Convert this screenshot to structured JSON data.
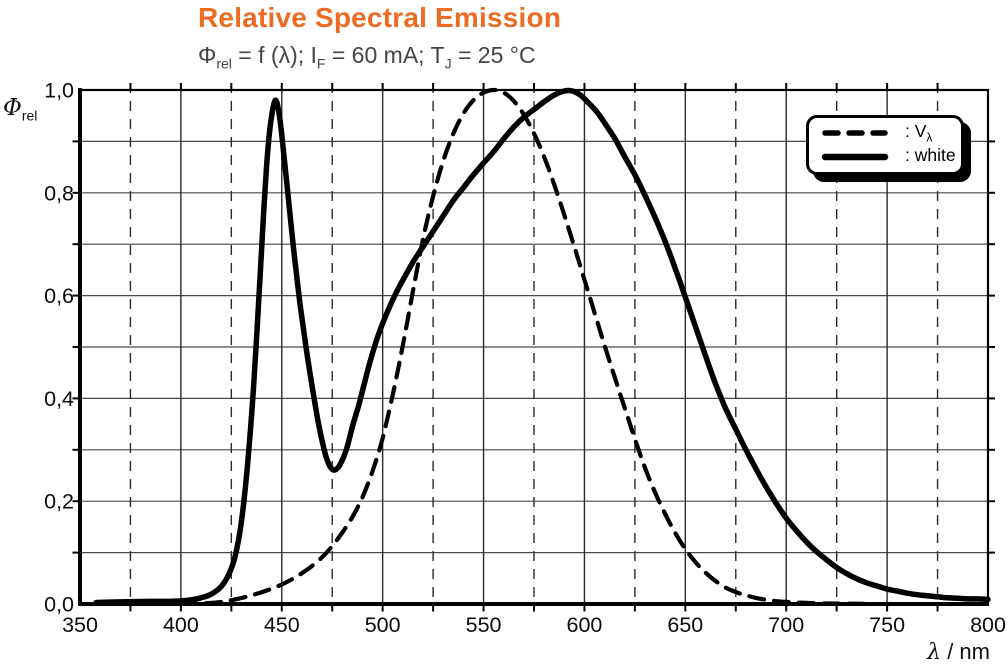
{
  "header": {
    "title": "Relative Spectral Emission",
    "subtitle": {
      "phi": "Φ",
      "phi_sub": "rel",
      "seg1": " = f (λ); I",
      "i_sub": "F",
      "seg2": " = 60 mA; T",
      "t_sub": "J",
      "seg3": " = 25 °C"
    }
  },
  "axes": {
    "y_label": {
      "symbol": "Φ",
      "sub": "rel"
    },
    "x_label": {
      "symbol": "λ",
      "rest": " / nm"
    }
  },
  "legend": {
    "entries": [
      {
        "style": "dashed",
        "label_pre": ": V",
        "label_sub": "λ"
      },
      {
        "style": "solid",
        "label_pre": ": white",
        "label_sub": ""
      }
    ]
  },
  "colors": {
    "title_orange": "#EE6B23",
    "subtitle_gray": "#454545",
    "axis_black": "#000000",
    "grid_dark": "#2a2a2a",
    "grid_gray": "#4a4a4a",
    "curve_black": "#000000"
  },
  "chart_data": {
    "type": "line",
    "title": "Relative Spectral Emission",
    "subtitle": "Φrel = f (λ); IF = 60 mA; TJ = 25 °C",
    "xlabel": "λ / nm",
    "ylabel": "Φrel",
    "xlim": [
      350,
      800
    ],
    "ylim": [
      0.0,
      1.0
    ],
    "x_major_tick_step": 50,
    "x_minor_tick_step": 25,
    "x_tick_labels": [
      "350",
      "400",
      "450",
      "500",
      "550",
      "600",
      "650",
      "700",
      "750",
      "800"
    ],
    "y_tick_labels": [
      {
        "value": 0.0,
        "label": "0,0"
      },
      {
        "value": 0.2,
        "label": "0,2"
      },
      {
        "value": 0.4,
        "label": "0,4"
      },
      {
        "value": 0.6,
        "label": "0,6"
      },
      {
        "value": 0.8,
        "label": "0,8"
      },
      {
        "value": 1.0,
        "label": "1,0"
      }
    ],
    "y_grid_step": 0.1,
    "grid": "vertical: solid every 50 nm, dashed every 25 nm; horizontal: solid every 0.1",
    "legend_position": "top-right",
    "series": [
      {
        "name": "V-lambda",
        "line": "dashed",
        "points": [
          [
            400,
            0.0004
          ],
          [
            410,
            0.0012
          ],
          [
            420,
            0.004
          ],
          [
            430,
            0.0116
          ],
          [
            435,
            0.0168
          ],
          [
            440,
            0.023
          ],
          [
            445,
            0.0298
          ],
          [
            450,
            0.038
          ],
          [
            455,
            0.048
          ],
          [
            460,
            0.06
          ],
          [
            465,
            0.0739
          ],
          [
            470,
            0.091
          ],
          [
            475,
            0.1126
          ],
          [
            480,
            0.139
          ],
          [
            485,
            0.1693
          ],
          [
            490,
            0.208
          ],
          [
            495,
            0.2586
          ],
          [
            500,
            0.323
          ],
          [
            505,
            0.4073
          ],
          [
            510,
            0.503
          ],
          [
            515,
            0.6082
          ],
          [
            520,
            0.71
          ],
          [
            525,
            0.7932
          ],
          [
            530,
            0.862
          ],
          [
            535,
            0.9149
          ],
          [
            540,
            0.954
          ],
          [
            545,
            0.9803
          ],
          [
            550,
            0.995
          ],
          [
            555,
            1.0
          ],
          [
            560,
            0.995
          ],
          [
            565,
            0.9786
          ],
          [
            570,
            0.952
          ],
          [
            575,
            0.9154
          ],
          [
            580,
            0.87
          ],
          [
            585,
            0.8163
          ],
          [
            590,
            0.757
          ],
          [
            595,
            0.6949
          ],
          [
            600,
            0.631
          ],
          [
            605,
            0.5668
          ],
          [
            610,
            0.503
          ],
          [
            615,
            0.4412
          ],
          [
            620,
            0.381
          ],
          [
            625,
            0.321
          ],
          [
            630,
            0.265
          ],
          [
            635,
            0.217
          ],
          [
            640,
            0.175
          ],
          [
            645,
            0.1382
          ],
          [
            650,
            0.107
          ],
          [
            655,
            0.0816
          ],
          [
            660,
            0.061
          ],
          [
            665,
            0.0446
          ],
          [
            670,
            0.032
          ],
          [
            675,
            0.0232
          ],
          [
            680,
            0.017
          ],
          [
            685,
            0.0119
          ],
          [
            690,
            0.0082
          ],
          [
            695,
            0.0057
          ],
          [
            700,
            0.0041
          ],
          [
            710,
            0.0021
          ],
          [
            720,
            0.001
          ],
          [
            730,
            0.0005
          ],
          [
            740,
            0.0003
          ]
        ]
      },
      {
        "name": "white",
        "line": "solid",
        "points": [
          [
            358,
            0.003
          ],
          [
            370,
            0.004
          ],
          [
            385,
            0.005
          ],
          [
            395,
            0.005
          ],
          [
            400,
            0.006
          ],
          [
            405,
            0.008
          ],
          [
            410,
            0.012
          ],
          [
            415,
            0.019
          ],
          [
            420,
            0.034
          ],
          [
            424,
            0.06
          ],
          [
            427,
            0.095
          ],
          [
            430,
            0.16
          ],
          [
            433,
            0.27
          ],
          [
            436,
            0.42
          ],
          [
            439,
            0.62
          ],
          [
            441,
            0.76
          ],
          [
            443,
            0.88
          ],
          [
            445,
            0.95
          ],
          [
            447,
            0.98
          ],
          [
            449,
            0.945
          ],
          [
            451,
            0.875
          ],
          [
            453,
            0.8
          ],
          [
            456,
            0.685
          ],
          [
            459,
            0.585
          ],
          [
            462,
            0.5
          ],
          [
            465,
            0.425
          ],
          [
            468,
            0.355
          ],
          [
            471,
            0.3
          ],
          [
            473,
            0.275
          ],
          [
            475,
            0.262
          ],
          [
            477,
            0.262
          ],
          [
            479,
            0.272
          ],
          [
            482,
            0.3
          ],
          [
            485,
            0.345
          ],
          [
            488,
            0.385
          ],
          [
            491,
            0.43
          ],
          [
            494,
            0.475
          ],
          [
            498,
            0.525
          ],
          [
            502,
            0.565
          ],
          [
            506,
            0.6
          ],
          [
            510,
            0.63
          ],
          [
            515,
            0.665
          ],
          [
            520,
            0.695
          ],
          [
            525,
            0.725
          ],
          [
            530,
            0.755
          ],
          [
            535,
            0.785
          ],
          [
            540,
            0.81
          ],
          [
            545,
            0.835
          ],
          [
            550,
            0.858
          ],
          [
            555,
            0.88
          ],
          [
            560,
            0.905
          ],
          [
            565,
            0.928
          ],
          [
            570,
            0.947
          ],
          [
            575,
            0.962
          ],
          [
            580,
            0.977
          ],
          [
            585,
            0.99
          ],
          [
            590,
            0.998
          ],
          [
            594,
            0.998
          ],
          [
            598,
            0.99
          ],
          [
            602,
            0.975
          ],
          [
            606,
            0.958
          ],
          [
            610,
            0.936
          ],
          [
            615,
            0.906
          ],
          [
            620,
            0.87
          ],
          [
            625,
            0.835
          ],
          [
            630,
            0.795
          ],
          [
            635,
            0.752
          ],
          [
            640,
            0.705
          ],
          [
            645,
            0.653
          ],
          [
            650,
            0.597
          ],
          [
            655,
            0.54
          ],
          [
            660,
            0.483
          ],
          [
            665,
            0.428
          ],
          [
            670,
            0.38
          ],
          [
            675,
            0.34
          ],
          [
            680,
            0.3
          ],
          [
            685,
            0.263
          ],
          [
            690,
            0.228
          ],
          [
            695,
            0.196
          ],
          [
            700,
            0.167
          ],
          [
            705,
            0.143
          ],
          [
            710,
            0.121
          ],
          [
            715,
            0.102
          ],
          [
            720,
            0.086
          ],
          [
            725,
            0.071
          ],
          [
            730,
            0.059
          ],
          [
            735,
            0.049
          ],
          [
            740,
            0.041
          ],
          [
            745,
            0.035
          ],
          [
            750,
            0.029
          ],
          [
            755,
            0.025
          ],
          [
            760,
            0.021
          ],
          [
            765,
            0.018
          ],
          [
            770,
            0.016
          ],
          [
            775,
            0.014
          ],
          [
            780,
            0.012
          ],
          [
            785,
            0.011
          ],
          [
            790,
            0.01
          ],
          [
            795,
            0.01
          ],
          [
            800,
            0.009
          ]
        ]
      }
    ]
  }
}
